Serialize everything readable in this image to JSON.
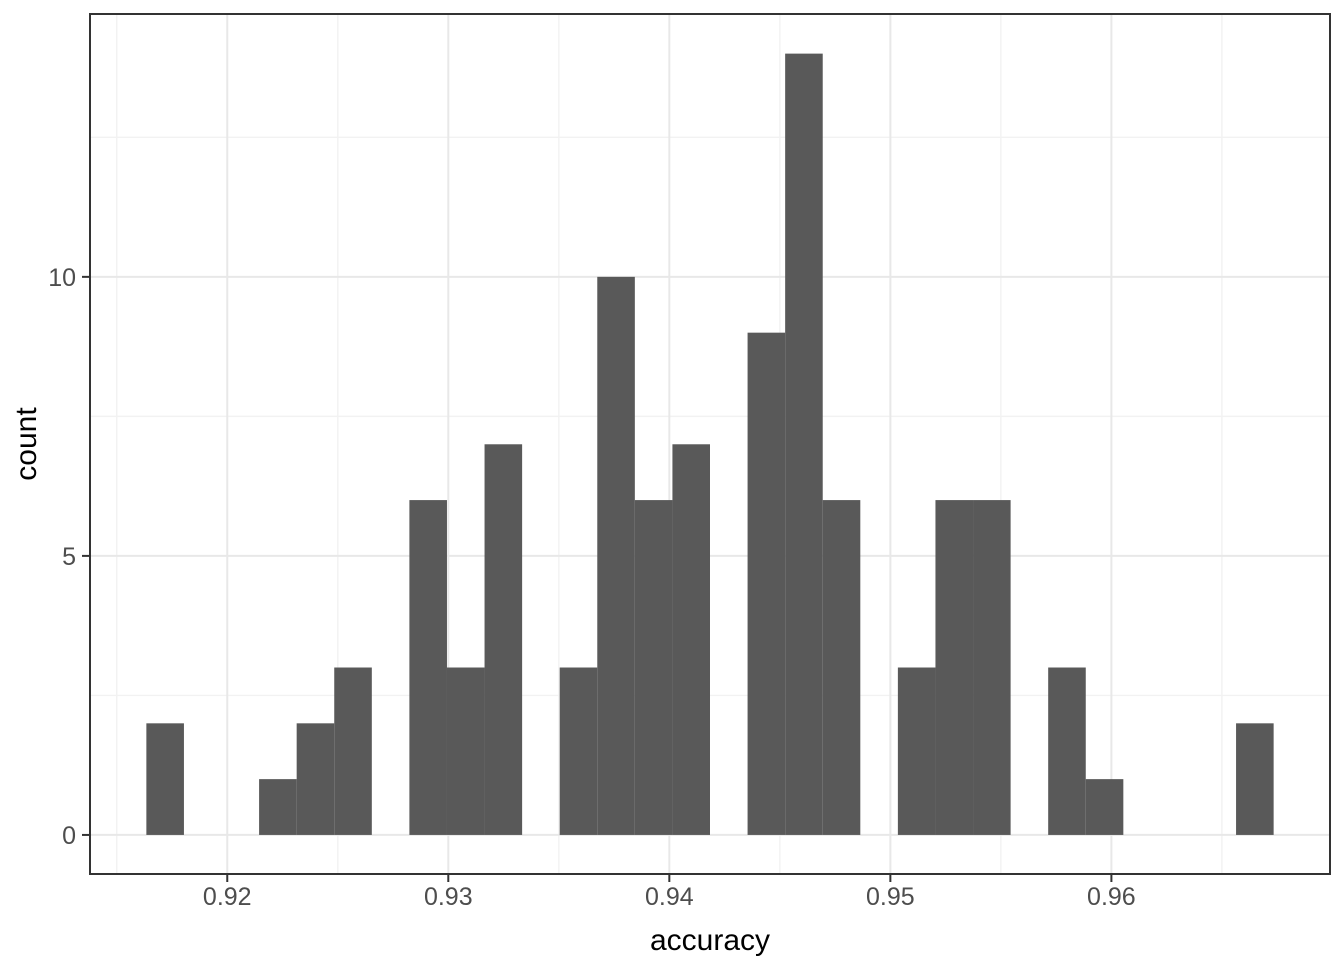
{
  "chart_data": {
    "type": "bar",
    "subtype": "histogram",
    "title": "",
    "xlabel": "accuracy",
    "ylabel": "count",
    "bins": {
      "start": 0.91634,
      "width": 0.0017,
      "counts": [
        2,
        0,
        0,
        1,
        2,
        3,
        0,
        6,
        3,
        7,
        0,
        3,
        10,
        6,
        7,
        0,
        9,
        14,
        6,
        0,
        3,
        6,
        6,
        0,
        3,
        1,
        0,
        0,
        0,
        2
      ]
    },
    "xlim": [
      0.91379,
      0.96989
    ],
    "ylim": [
      -0.7,
      14.71
    ],
    "x_ticks": [
      {
        "value": 0.92,
        "label": "0.92"
      },
      {
        "value": 0.93,
        "label": "0.93"
      },
      {
        "value": 0.94,
        "label": "0.94"
      },
      {
        "value": 0.95,
        "label": "0.95"
      },
      {
        "value": 0.96,
        "label": "0.96"
      }
    ],
    "x_minor": [
      0.915,
      0.925,
      0.935,
      0.945,
      0.955,
      0.965
    ],
    "y_ticks": [
      {
        "value": 0,
        "label": "0"
      },
      {
        "value": 5,
        "label": "5"
      },
      {
        "value": 10,
        "label": "10"
      }
    ],
    "y_minor": [
      2.5,
      7.5,
      12.5
    ],
    "grid": "major+minor",
    "legend": "none"
  },
  "style": {
    "bar_fill": "#595959",
    "panel_border": "#333333",
    "grid_major": "#E8E8E8",
    "grid_minor": "#F2F2F2",
    "tick_mark_color": "#333333",
    "tick_label_color": "#4D4D4D",
    "axis_title_color": "#000000",
    "background": "#FFFFFF"
  }
}
